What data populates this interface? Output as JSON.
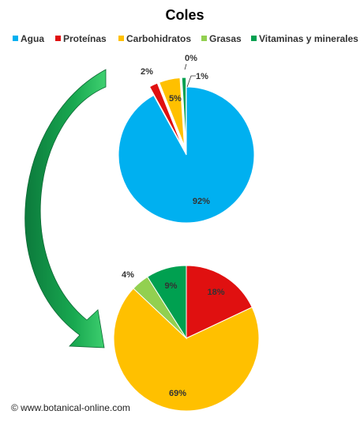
{
  "footer": "© www.botanical-online.com",
  "colors": {
    "Agua": "#00B0F0",
    "Proteínas": "#E01010",
    "Carbohidratos": "#FFC000",
    "Grasas": "#92D050",
    "Vitaminas y minerales": "#00A050",
    "arrow_dark": "#0C7A3C",
    "arrow_light": "#20C060"
  },
  "chart_data": [
    {
      "type": "pie",
      "title": "Coles",
      "legend": [
        "Agua",
        "Proteínas",
        "Carbohidratos",
        "Grasas",
        "Vitaminas y minerales"
      ],
      "legend_position": "top",
      "categories": [
        "Agua",
        "Proteínas",
        "Carbohidratos",
        "Grasas",
        "Vitaminas y minerales"
      ],
      "values": [
        92,
        2,
        5,
        0,
        1
      ],
      "labels": [
        "92%",
        "2%",
        "5%",
        "0%",
        "1%"
      ]
    },
    {
      "type": "pie",
      "categories": [
        "Proteínas",
        "Carbohidratos",
        "Grasas",
        "Vitaminas y minerales"
      ],
      "values": [
        18,
        69,
        4,
        9
      ],
      "labels": [
        "18%",
        "69%",
        "4%",
        "9%"
      ]
    }
  ]
}
